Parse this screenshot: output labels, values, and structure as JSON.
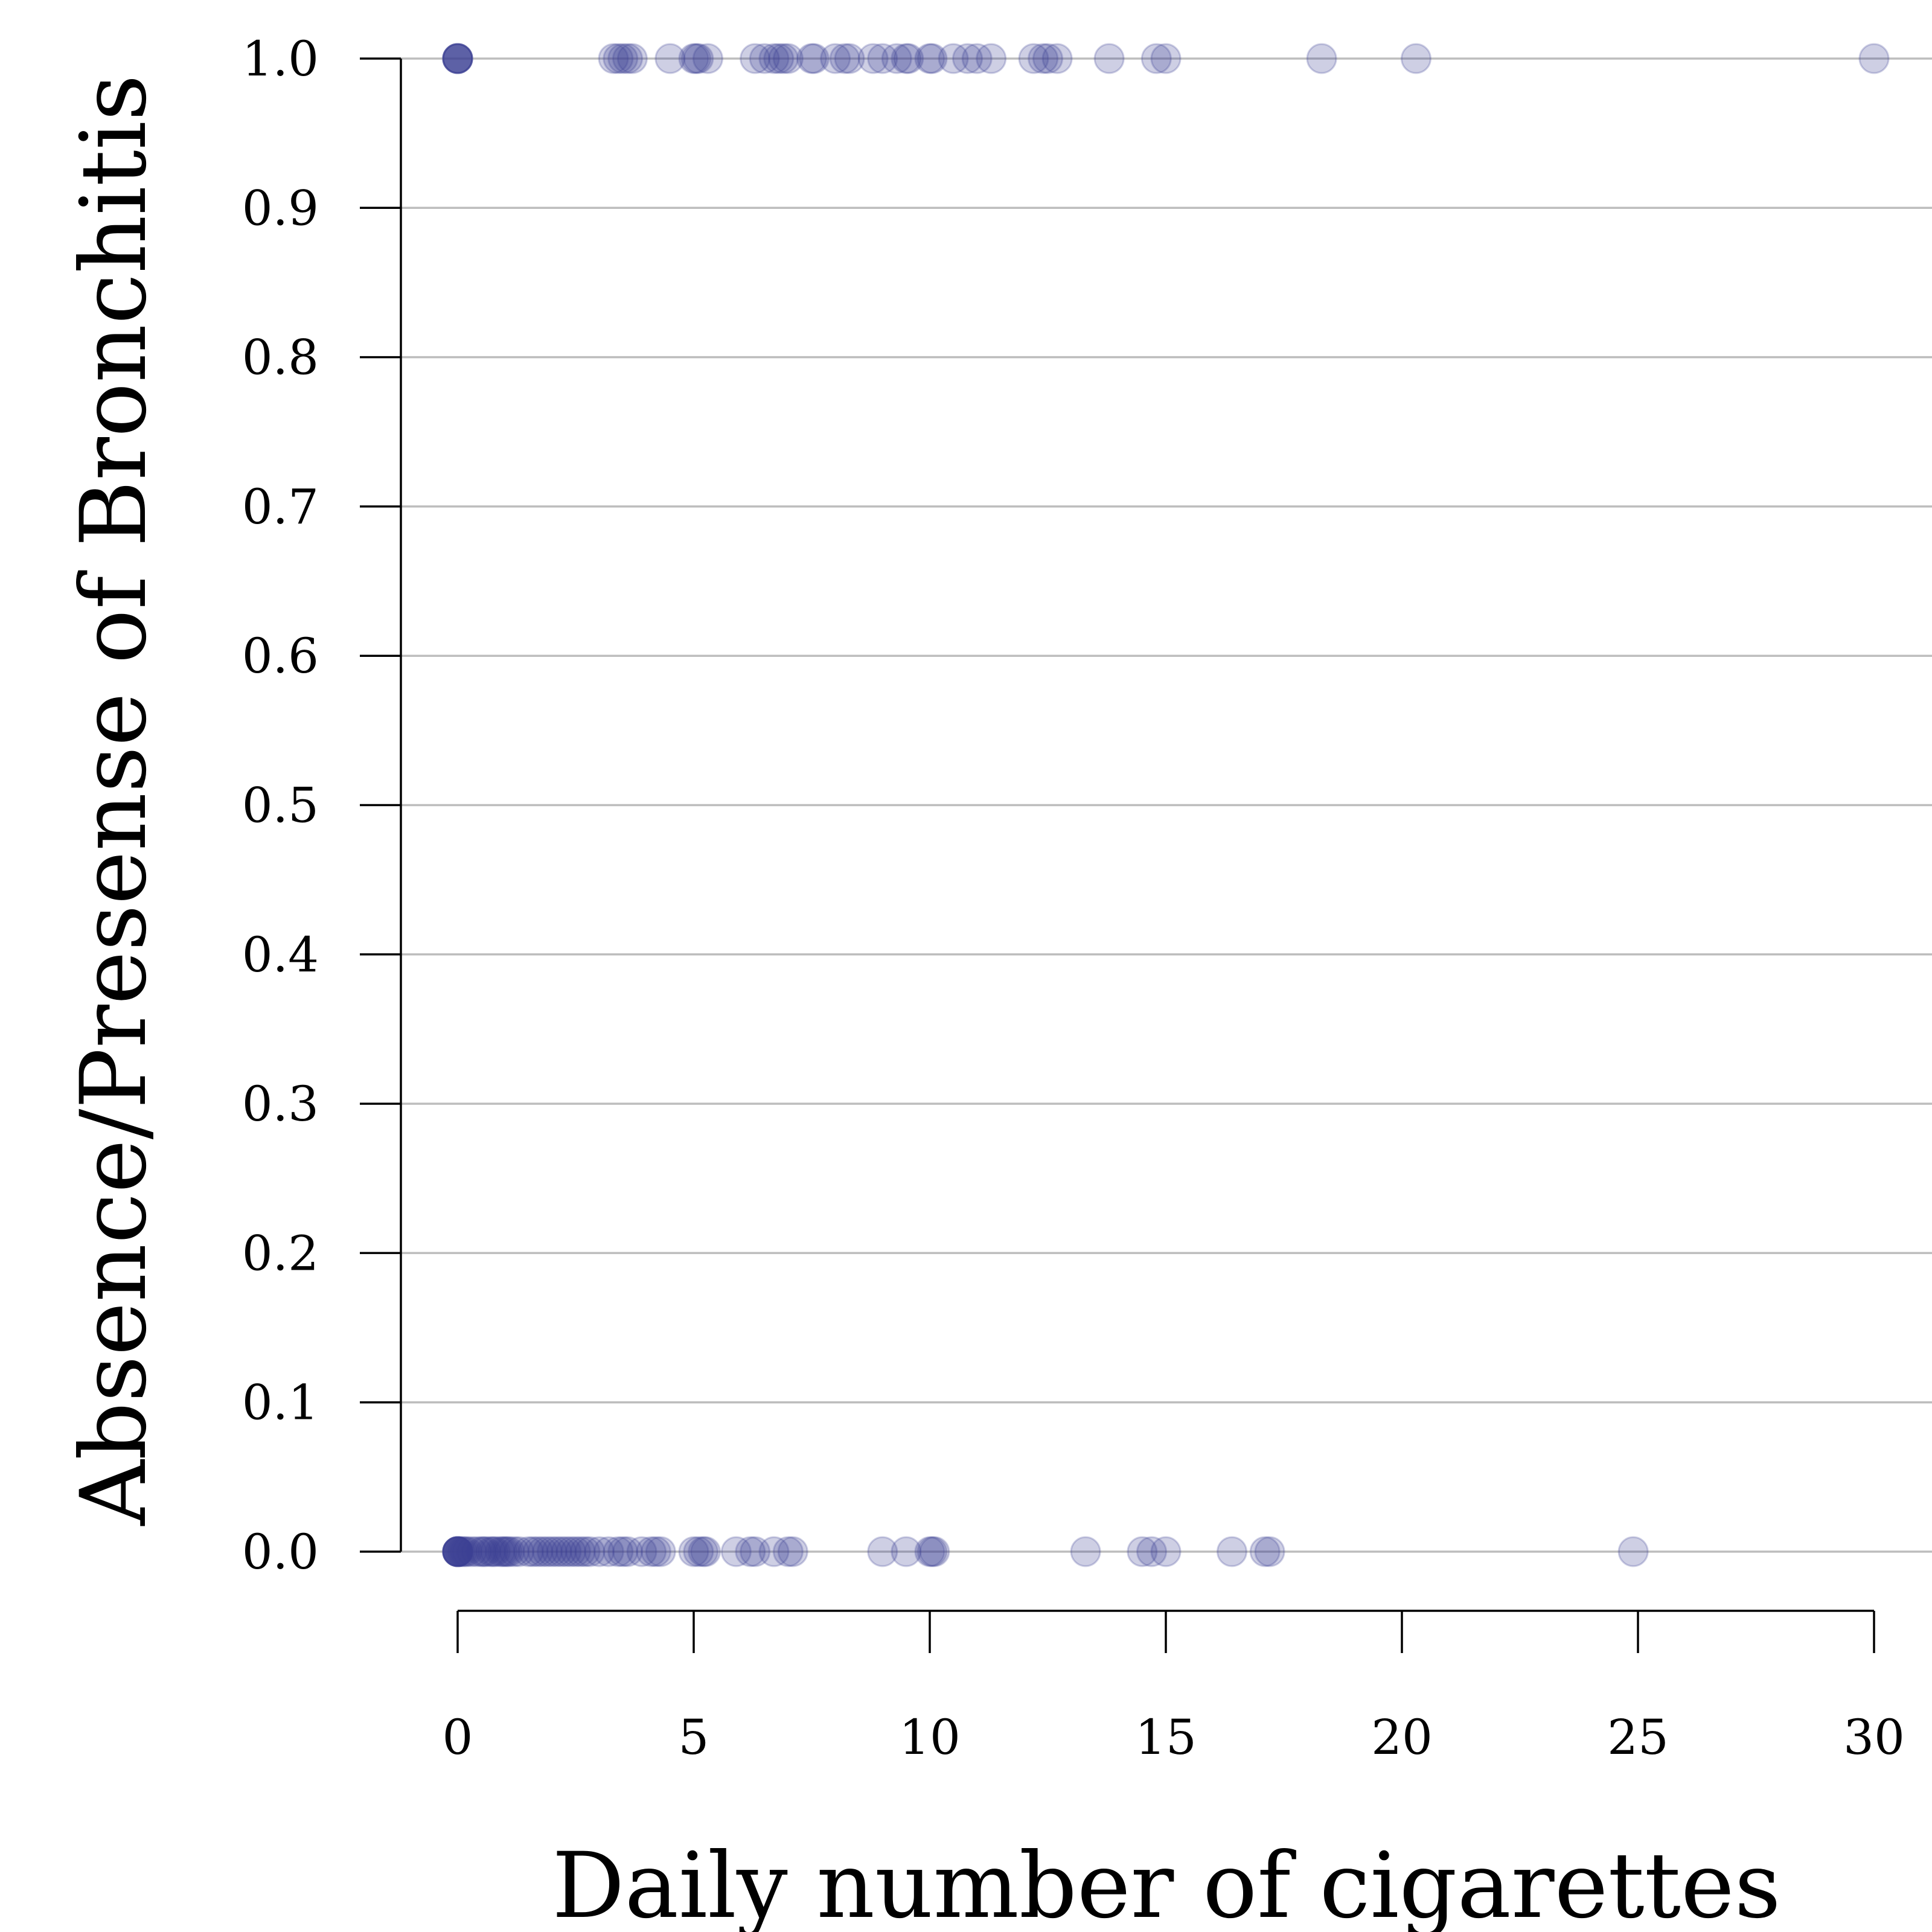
{
  "chart_data": {
    "type": "scatter",
    "title": "",
    "xlabel": "Daily number of cigarettes",
    "ylabel": "Absence/Presense of Bronchitis",
    "xlim": [
      0,
      30
    ],
    "ylim": [
      0,
      1
    ],
    "x_ticks": [
      0,
      5,
      10,
      15,
      20,
      25,
      30
    ],
    "x_tick_labels": [
      "0",
      "5",
      "10",
      "15",
      "20",
      "25",
      "30"
    ],
    "y_ticks": [
      0,
      0.1,
      0.2,
      0.3,
      0.4,
      0.5,
      0.6,
      0.7,
      0.8,
      0.9,
      1.0
    ],
    "y_tick_labels": [
      "0.0",
      "0.1",
      "0.2",
      "0.3",
      "0.4",
      "0.5",
      "0.6",
      "0.7",
      "0.8",
      "0.9",
      "1.0"
    ],
    "grid": "horizontal",
    "marker_color": "#3b3f94",
    "marker_opacity": 0.25,
    "points": [
      {
        "x": 0,
        "y": 1
      },
      {
        "x": 0,
        "y": 1
      },
      {
        "x": 0,
        "y": 1
      },
      {
        "x": 0,
        "y": 1
      },
      {
        "x": 0,
        "y": 1
      },
      {
        "x": 0,
        "y": 1
      },
      {
        "x": 3.3,
        "y": 1
      },
      {
        "x": 3.4,
        "y": 1
      },
      {
        "x": 3.5,
        "y": 1
      },
      {
        "x": 3.6,
        "y": 1
      },
      {
        "x": 3.7,
        "y": 1
      },
      {
        "x": 4.5,
        "y": 1
      },
      {
        "x": 5.0,
        "y": 1
      },
      {
        "x": 5.05,
        "y": 1
      },
      {
        "x": 5.1,
        "y": 1
      },
      {
        "x": 5.3,
        "y": 1
      },
      {
        "x": 6.3,
        "y": 1
      },
      {
        "x": 6.5,
        "y": 1
      },
      {
        "x": 6.7,
        "y": 1
      },
      {
        "x": 6.8,
        "y": 1
      },
      {
        "x": 6.9,
        "y": 1
      },
      {
        "x": 7.0,
        "y": 1
      },
      {
        "x": 7.5,
        "y": 1
      },
      {
        "x": 7.55,
        "y": 1
      },
      {
        "x": 8.0,
        "y": 1
      },
      {
        "x": 8.2,
        "y": 1
      },
      {
        "x": 8.3,
        "y": 1
      },
      {
        "x": 8.8,
        "y": 1
      },
      {
        "x": 9.0,
        "y": 1
      },
      {
        "x": 9.3,
        "y": 1
      },
      {
        "x": 9.5,
        "y": 1
      },
      {
        "x": 9.55,
        "y": 1
      },
      {
        "x": 10.0,
        "y": 1
      },
      {
        "x": 10.05,
        "y": 1
      },
      {
        "x": 10.5,
        "y": 1
      },
      {
        "x": 10.8,
        "y": 1
      },
      {
        "x": 11.0,
        "y": 1
      },
      {
        "x": 11.3,
        "y": 1
      },
      {
        "x": 12.2,
        "y": 1
      },
      {
        "x": 12.4,
        "y": 1
      },
      {
        "x": 12.5,
        "y": 1
      },
      {
        "x": 12.7,
        "y": 1
      },
      {
        "x": 13.8,
        "y": 1
      },
      {
        "x": 14.8,
        "y": 1
      },
      {
        "x": 15.0,
        "y": 1
      },
      {
        "x": 18.3,
        "y": 1
      },
      {
        "x": 20.3,
        "y": 1
      },
      {
        "x": 30.0,
        "y": 1
      },
      {
        "x": 0,
        "y": 0
      },
      {
        "x": 0,
        "y": 0
      },
      {
        "x": 0,
        "y": 0
      },
      {
        "x": 0,
        "y": 0
      },
      {
        "x": 0,
        "y": 0
      },
      {
        "x": 0,
        "y": 0
      },
      {
        "x": 0,
        "y": 0
      },
      {
        "x": 0,
        "y": 0
      },
      {
        "x": 0.05,
        "y": 0
      },
      {
        "x": 0.1,
        "y": 0
      },
      {
        "x": 0.15,
        "y": 0
      },
      {
        "x": 0.2,
        "y": 0
      },
      {
        "x": 0.3,
        "y": 0
      },
      {
        "x": 0.4,
        "y": 0
      },
      {
        "x": 0.5,
        "y": 0
      },
      {
        "x": 0.55,
        "y": 0
      },
      {
        "x": 0.6,
        "y": 0
      },
      {
        "x": 0.7,
        "y": 0
      },
      {
        "x": 0.75,
        "y": 0
      },
      {
        "x": 0.8,
        "y": 0
      },
      {
        "x": 0.9,
        "y": 0
      },
      {
        "x": 0.95,
        "y": 0
      },
      {
        "x": 1.0,
        "y": 0
      },
      {
        "x": 1.05,
        "y": 0
      },
      {
        "x": 1.1,
        "y": 0
      },
      {
        "x": 1.2,
        "y": 0
      },
      {
        "x": 1.3,
        "y": 0
      },
      {
        "x": 1.5,
        "y": 0
      },
      {
        "x": 1.6,
        "y": 0
      },
      {
        "x": 1.7,
        "y": 0
      },
      {
        "x": 1.8,
        "y": 0
      },
      {
        "x": 1.9,
        "y": 0
      },
      {
        "x": 2.0,
        "y": 0
      },
      {
        "x": 2.1,
        "y": 0
      },
      {
        "x": 2.2,
        "y": 0
      },
      {
        "x": 2.3,
        "y": 0
      },
      {
        "x": 2.4,
        "y": 0
      },
      {
        "x": 2.5,
        "y": 0
      },
      {
        "x": 2.6,
        "y": 0
      },
      {
        "x": 2.7,
        "y": 0
      },
      {
        "x": 2.8,
        "y": 0
      },
      {
        "x": 3.0,
        "y": 0
      },
      {
        "x": 3.2,
        "y": 0
      },
      {
        "x": 3.4,
        "y": 0
      },
      {
        "x": 3.5,
        "y": 0
      },
      {
        "x": 3.6,
        "y": 0
      },
      {
        "x": 3.9,
        "y": 0
      },
      {
        "x": 4.1,
        "y": 0
      },
      {
        "x": 4.2,
        "y": 0
      },
      {
        "x": 4.3,
        "y": 0
      },
      {
        "x": 5.0,
        "y": 0
      },
      {
        "x": 5.1,
        "y": 0
      },
      {
        "x": 5.2,
        "y": 0
      },
      {
        "x": 5.25,
        "y": 0
      },
      {
        "x": 5.9,
        "y": 0
      },
      {
        "x": 6.2,
        "y": 0
      },
      {
        "x": 6.3,
        "y": 0
      },
      {
        "x": 6.7,
        "y": 0
      },
      {
        "x": 7.0,
        "y": 0
      },
      {
        "x": 7.1,
        "y": 0
      },
      {
        "x": 9.0,
        "y": 0
      },
      {
        "x": 9.5,
        "y": 0
      },
      {
        "x": 10.0,
        "y": 0
      },
      {
        "x": 10.05,
        "y": 0
      },
      {
        "x": 10.1,
        "y": 0
      },
      {
        "x": 13.3,
        "y": 0
      },
      {
        "x": 14.5,
        "y": 0
      },
      {
        "x": 14.7,
        "y": 0
      },
      {
        "x": 15.0,
        "y": 0
      },
      {
        "x": 16.4,
        "y": 0
      },
      {
        "x": 17.1,
        "y": 0
      },
      {
        "x": 17.2,
        "y": 0
      },
      {
        "x": 24.9,
        "y": 0
      }
    ]
  }
}
